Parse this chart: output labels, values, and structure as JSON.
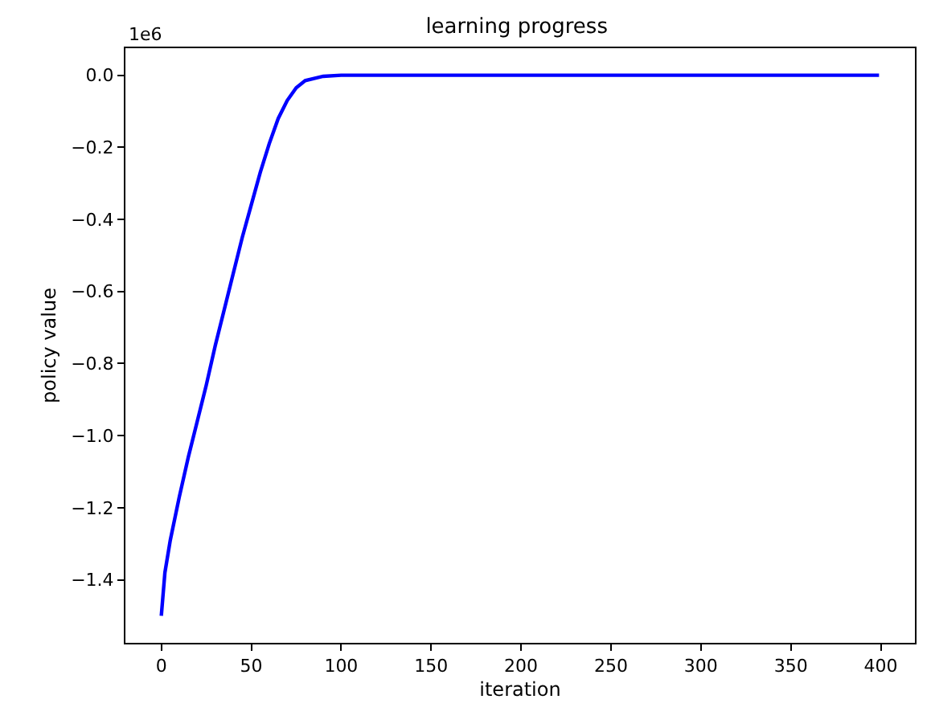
{
  "chart_data": {
    "type": "line",
    "title": "learning progress",
    "xlabel": "iteration",
    "ylabel": "policy value",
    "annotations": [
      "1e6"
    ],
    "x": [
      0,
      2,
      5,
      10,
      15,
      20,
      25,
      30,
      35,
      40,
      45,
      50,
      55,
      60,
      65,
      70,
      75,
      80,
      90,
      100,
      150,
      200,
      300,
      399
    ],
    "series": [
      {
        "color": "#0000ff",
        "values": [
          -1.5,
          -1.38,
          -1.29,
          -1.17,
          -1.06,
          -0.96,
          -0.86,
          -0.75,
          -0.65,
          -0.55,
          -0.45,
          -0.36,
          -0.27,
          -0.19,
          -0.12,
          -0.07,
          -0.035,
          -0.015,
          -0.003,
          0,
          0,
          0,
          0,
          0
        ]
      }
    ],
    "xlim": [
      -19.95,
      418.95
    ],
    "xticks": [
      0,
      50,
      100,
      150,
      200,
      250,
      300,
      350,
      400
    ],
    "ylim": [
      -1.575,
      0.075
    ],
    "yticks": [
      {
        "value": -1.4,
        "label": "−1.4"
      },
      {
        "value": -1.2,
        "label": "−1.2"
      },
      {
        "value": -1.0,
        "label": "−1.0"
      },
      {
        "value": -0.8,
        "label": "−0.8"
      },
      {
        "value": -0.6,
        "label": "−0.6"
      },
      {
        "value": -0.4,
        "label": "−0.4"
      },
      {
        "value": -0.2,
        "label": "−0.2"
      },
      {
        "value": 0,
        "label": "0.0"
      }
    ],
    "marker": "none",
    "line_style": "solid"
  }
}
